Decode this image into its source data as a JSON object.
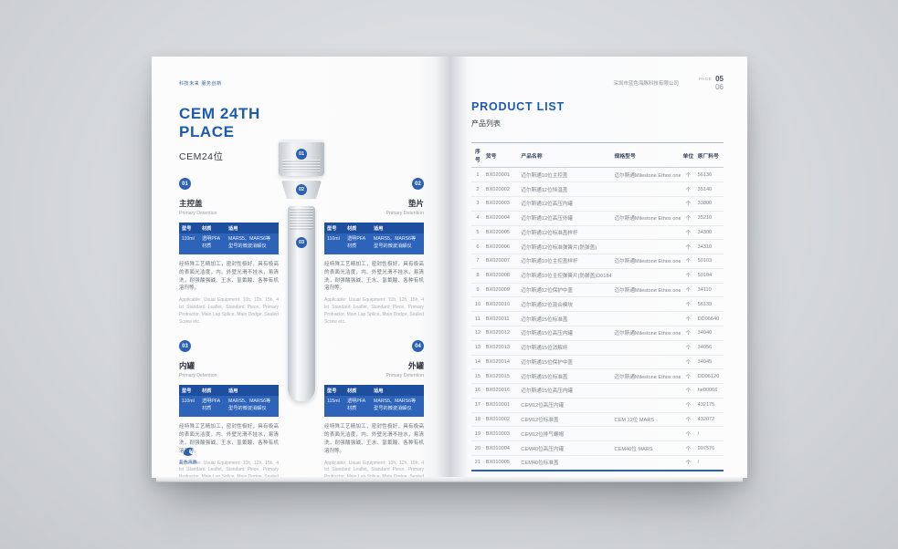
{
  "accent": "#1d5bb0",
  "left_page": {
    "slogan": "科技未来 服务创新",
    "title_line1": "CEM 24TH",
    "title_line2": "PLACE",
    "subtitle": "CEM24位",
    "logo_icon": "dolphin-logo-icon",
    "logo_text": "蓝色海豚",
    "pieces": [
      {
        "label": "01"
      },
      {
        "label": "02"
      },
      {
        "label": "03"
      }
    ],
    "spec_headers": {
      "model": "型号",
      "material": "材质",
      "usage": "适用"
    },
    "sections": [
      {
        "num": "01",
        "name": "主控盖",
        "en": "Primary Detention",
        "model": "110ml",
        "material": "透明PFA\n材质",
        "usage": "MARS5、MARS6等\n型号的微波消解仪",
        "desc_cn": "经特殊工艺精加工，密封性极好，具有极高的表面光洁度，内、外壁光滑不挂水，易清洗，耐强酸强碱、王水、氢氟酸、各种有机溶剂等。",
        "desc_en": "Applicable: Usual Equipment: 10h, 12h, 15h, 4 lst Standard Leaflet, Standard Piece, Primary Protractor, Main Lap Splice, Main Dodge, Sealed Screw etc."
      },
      {
        "num": "02",
        "name": "垫片",
        "en": "Primary Detention",
        "model": "110ml",
        "material": "透明PFA\n材质",
        "usage": "MARS5、MARS6等\n型号的微波消解仪",
        "desc_cn": "经特殊工艺精加工，密封性极好，具有极高的表面光洁度，内、外壁光滑不挂水，易清洗，耐强酸强碱、王水、氢氟酸、各种有机溶剂等。",
        "desc_en": "Applicable: Usual Equipment: 10h, 12h, 15h, 4 lst Standard Leaflet, Standard Piece, Primary Protractor, Main Lap Splice, Main Dodge, Sealed Screw etc."
      },
      {
        "num": "03",
        "name": "内罐",
        "en": "Primary Detention",
        "model": "110ml",
        "material": "透明PFA\n材质",
        "usage": "MARS5、MARS6等\n型号的微波消解仪",
        "desc_cn": "经特殊工艺精加工，密封性极好，具有极高的表面光洁度，内、外壁光滑不挂水，易清洗，耐强酸强碱、王水、氢氟酸、各种有机溶剂等。",
        "desc_en": "Applicable: Usual Equipment: 10h, 12h, 15h, 4 lst Standard Leaflet, Standard Piece, Primary Protractor, Main Lap Splice, Main Dodge, Sealed Screw etc."
      },
      {
        "num": "04",
        "name": "外罐",
        "en": "Primary Detention",
        "model": "115ml",
        "material": "透明PFA\n材质",
        "usage": "MARS5、MARS6等\n型号的微波消解仪",
        "desc_cn": "经特殊工艺精加工，密封性极好，具有极高的表面光洁度，内、外壁光滑不挂水，易清洗，耐强酸强碱、王水、氢氟酸、各种有机溶剂等。",
        "desc_en": "Applicable: Usual Equipment: 10h, 12h, 15h, 4 lst Standard Leaflet, Standard Piece, Primary Protractor, Main Lap Splice, Main Dodge, Sealed Screw etc."
      }
    ]
  },
  "right_page": {
    "company": "深圳市蓝色海豚科技有限公司",
    "page_word": "PAGE",
    "page_num_top": "05",
    "page_num_bottom": "06",
    "title": "PRODUCT LIST",
    "subtitle": "产品列表",
    "table": {
      "headers": [
        "序号",
        "货号",
        "产品名称",
        "规格型号",
        "单位",
        "原厂料号"
      ],
      "rows": [
        [
          "1",
          "BX020001",
          "迈尔斯通10位主控盖",
          "迈尔斯通Milestone Ethos one 10/12位",
          "个",
          "56136"
        ],
        [
          "2",
          "BX020002",
          "迈尔斯通12位恒温盖",
          "",
          "个",
          "35140"
        ],
        [
          "3",
          "BX020003",
          "迈尔斯通12位高压内罐",
          "",
          "个",
          "33800"
        ],
        [
          "4",
          "BX020004",
          "迈尔斯通12位高压外罐",
          "迈尔斯通Milestone Ethos one 12位",
          "个",
          "35210"
        ],
        [
          "5",
          "BX020005",
          "迈尔斯通12位标准盖样杆",
          "",
          "个",
          "34300"
        ],
        [
          "6",
          "BX020006",
          "迈尔斯通12位标准弹簧片(防弹盖)",
          "",
          "个",
          "34310"
        ],
        [
          "7",
          "BX020007",
          "迈尔斯通10位主控盖样杆",
          "迈尔斯通Milestone Ethos one 10/12位",
          "个",
          "50103"
        ],
        [
          "8",
          "BX020008",
          "迈尔斯通10位主控弹簧片(防弹盖)D0184",
          "",
          "个",
          "50184"
        ],
        [
          "9",
          "BX020009",
          "迈尔斯通12位保护中盖",
          "迈尔斯通Milestone Ethos one 12位",
          "个",
          "34110"
        ],
        [
          "10",
          "BX020010",
          "迈尔斯通12位混合模块",
          "",
          "个",
          "56139"
        ],
        [
          "11",
          "BX020011",
          "迈尔斯通15位标准盖",
          "",
          "个",
          "DD06640"
        ],
        [
          "12",
          "BX020012",
          "迈尔斯通15位高压内罐",
          "迈尔斯通Milestone Ethos one 10位",
          "个",
          "34040"
        ],
        [
          "13",
          "BX020013",
          "迈尔斯通15位消解杯",
          "",
          "个",
          "34056"
        ],
        [
          "14",
          "BX020014",
          "迈尔斯通15位保护中盖",
          "",
          "个",
          "34045"
        ],
        [
          "15",
          "BX020015",
          "迈尔斯通15位标准盖",
          "迈尔斯通Milestone Ethos one 15位",
          "个",
          "DD06120"
        ],
        [
          "16",
          "BX020016",
          "迈尔斯通15位高压内罐",
          "",
          "个",
          "he00066"
        ],
        [
          "17",
          "BX010001",
          "CEM12位高压内罐",
          "",
          "个",
          "432175"
        ],
        [
          "18",
          "BX010002",
          "CEM12位标准盖",
          "CEM 12位 MARS",
          "个",
          "432072"
        ],
        [
          "19",
          "BX010003",
          "CEM12位排气螺帽",
          "",
          "个",
          "/"
        ],
        [
          "20",
          "BX010004",
          "CEM40位高压内罐",
          "CEM40位 MARS",
          "个",
          "907576"
        ],
        [
          "21",
          "BX010005",
          "CEM40位标准盖",
          "",
          "个",
          "/"
        ]
      ]
    }
  }
}
